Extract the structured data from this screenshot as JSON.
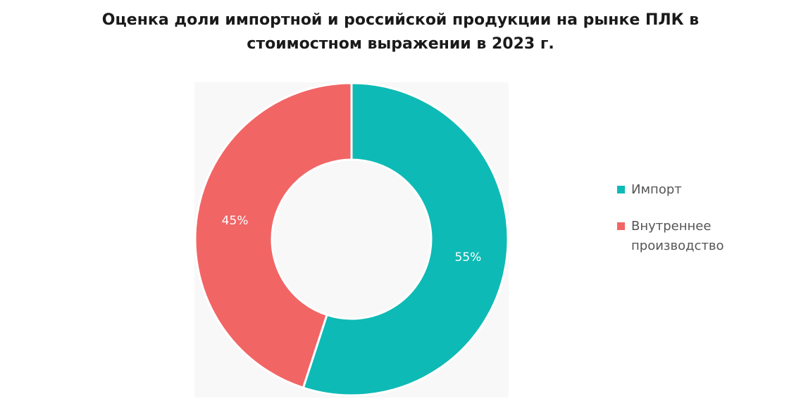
{
  "chart_data": {
    "type": "pie",
    "title_lines": [
      "Оценка доли импортной и российской продукции на рынке ПЛК в",
      "стоимостном выражении в 2023 г."
    ],
    "donut": true,
    "categories": [
      "Импорт",
      "Внутреннее производство"
    ],
    "values": [
      55,
      45
    ],
    "labels": [
      "55%",
      "45%"
    ],
    "colors": [
      "#0ebab5",
      "#f26565"
    ],
    "legend_position": "right"
  }
}
